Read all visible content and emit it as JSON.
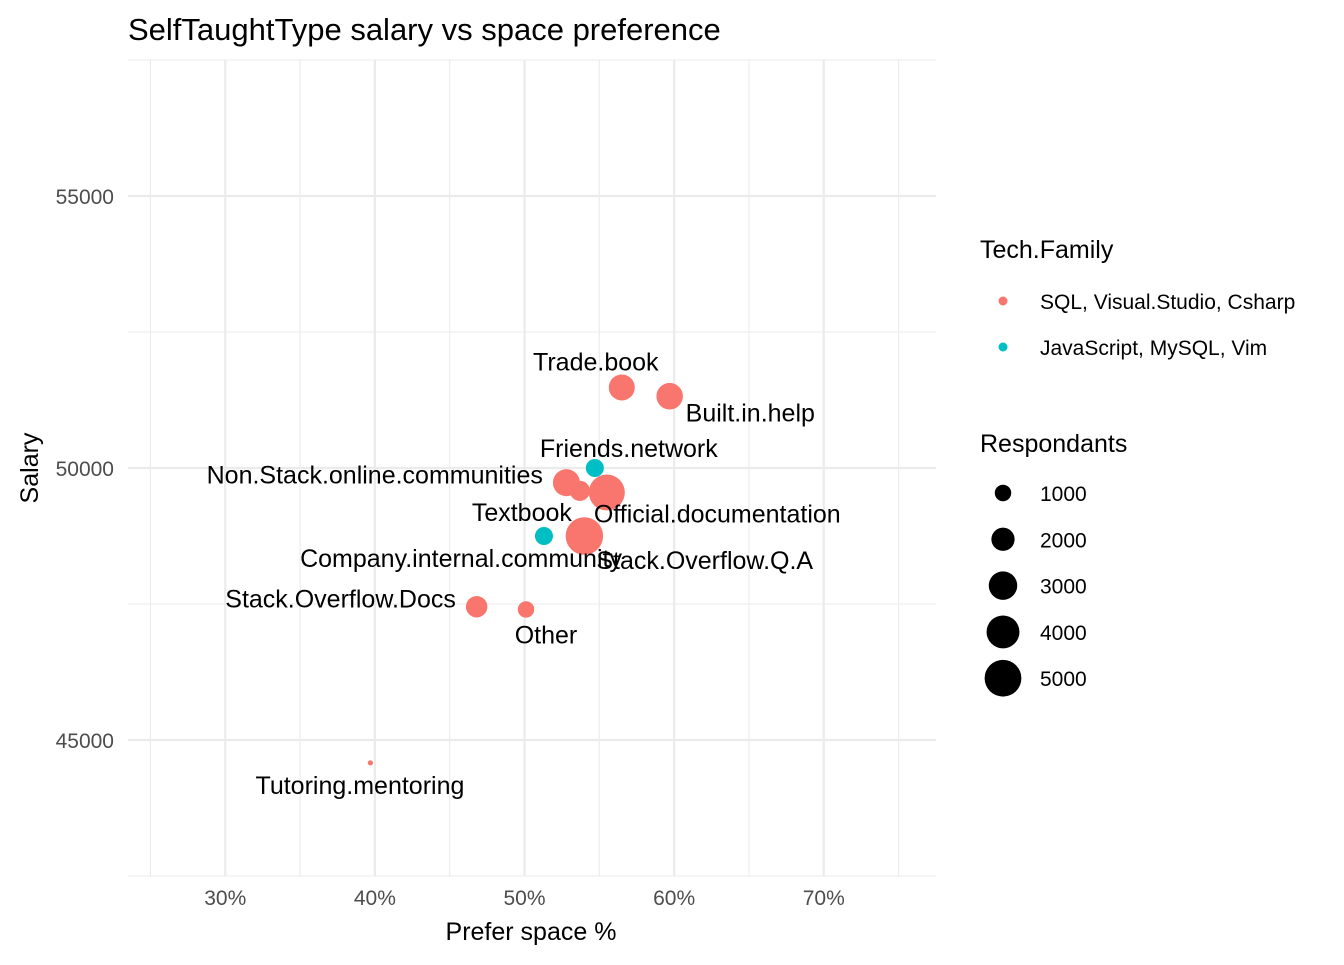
{
  "chart_data": {
    "type": "scatter",
    "title": "SelfTaughtType salary vs space preference",
    "xlabel": "Prefer space %",
    "ylabel": "Salary",
    "xlim": [
      0.235,
      0.775
    ],
    "ylim": [
      42500,
      57500
    ],
    "x_ticks": [
      0.3,
      0.4,
      0.5,
      0.6,
      0.7
    ],
    "x_tick_labels": [
      "30%",
      "40%",
      "50%",
      "60%",
      "70%"
    ],
    "y_ticks": [
      45000,
      50000,
      55000
    ],
    "y_tick_labels": [
      "45000",
      "50000",
      "55000"
    ],
    "grid": true,
    "legend_position": "right",
    "color_legend": {
      "title": "Tech.Family",
      "entries": [
        {
          "label": "SQL, Visual.Studio, Csharp",
          "color": "#F8766D"
        },
        {
          "label": "JavaScript, MySQL, Vim",
          "color": "#00BFC4"
        }
      ]
    },
    "size_legend": {
      "title": "Respondants",
      "entries": [
        {
          "label": "1000",
          "value": 1000
        },
        {
          "label": "2000",
          "value": 2000
        },
        {
          "label": "3000",
          "value": 3000
        },
        {
          "label": "4000",
          "value": 4000
        },
        {
          "label": "5000",
          "value": 5000
        }
      ]
    },
    "points": [
      {
        "label": "Trade.book",
        "x": 0.565,
        "y": 51480,
        "size": 2500,
        "family": 0,
        "label_pos": "above-left"
      },
      {
        "label": "Built.in.help",
        "x": 0.597,
        "y": 51320,
        "size": 2600,
        "family": 0,
        "label_pos": "below-right"
      },
      {
        "label": "Friends.network",
        "x": 0.547,
        "y": 50000,
        "size": 1200,
        "family": 1,
        "label_pos": "above-right"
      },
      {
        "label": "Non.Stack.online.communities",
        "x": 0.528,
        "y": 49730,
        "size": 2700,
        "family": 0,
        "label_pos": "left"
      },
      {
        "label": "Textbook",
        "x": 0.537,
        "y": 49580,
        "size": 1500,
        "family": 0,
        "label_pos": "below-left"
      },
      {
        "label": "Official.documentation",
        "x": 0.555,
        "y": 49550,
        "size": 4800,
        "family": 0,
        "label_pos": "below-right"
      },
      {
        "label": "Company.internal.community",
        "x": 0.513,
        "y": 48750,
        "size": 1200,
        "family": 1,
        "label_pos": "below-left"
      },
      {
        "label": "Stack.Overflow.Q.A",
        "x": 0.54,
        "y": 48750,
        "size": 5200,
        "family": 0,
        "label_pos": "below-right"
      },
      {
        "label": "Stack.Overflow.Docs",
        "x": 0.468,
        "y": 47450,
        "size": 1700,
        "family": 0,
        "label_pos": "left"
      },
      {
        "label": "Other",
        "x": 0.501,
        "y": 47400,
        "size": 1000,
        "family": 0,
        "label_pos": "below"
      },
      {
        "label": "Tutoring.mentoring",
        "x": 0.397,
        "y": 44580,
        "size": 100,
        "family": 0,
        "label_pos": "below-left"
      }
    ]
  }
}
